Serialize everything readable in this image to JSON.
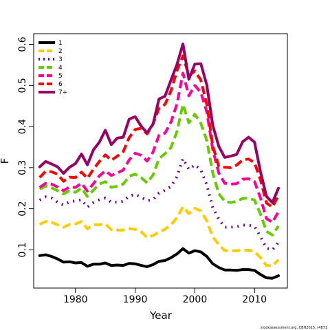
{
  "chart_data": {
    "type": "line",
    "title": "",
    "xlabel": "Year",
    "ylabel": "F",
    "xlim": [
      1973,
      2015.5
    ],
    "ylim": [
      0.007,
      0.626
    ],
    "xticks": [
      1980,
      1990,
      2000,
      2010
    ],
    "yticks": [
      0.1,
      0.2,
      0.3,
      0.4,
      0.5,
      0.6
    ],
    "ytick_labels": [
      "0.1",
      "0.2",
      "0.3",
      "0.4",
      "0.5",
      "0.6"
    ],
    "grid": false,
    "legend_position": "top-left",
    "years": [
      1974,
      1975,
      1976,
      1977,
      1978,
      1979,
      1980,
      1981,
      1982,
      1983,
      1984,
      1985,
      1986,
      1987,
      1988,
      1989,
      1990,
      1991,
      1992,
      1993,
      1994,
      1995,
      1996,
      1997,
      1998,
      1999,
      2000,
      2001,
      2002,
      2003,
      2004,
      2005,
      2006,
      2007,
      2008,
      2009,
      2010,
      2011,
      2012,
      2013,
      2014
    ],
    "series": [
      {
        "name": "1",
        "color": "#000000",
        "dash": "solid",
        "values": [
          0.086,
          0.088,
          0.084,
          0.078,
          0.07,
          0.071,
          0.068,
          0.069,
          0.06,
          0.065,
          0.065,
          0.068,
          0.062,
          0.063,
          0.062,
          0.067,
          0.066,
          0.062,
          0.059,
          0.064,
          0.072,
          0.074,
          0.081,
          0.09,
          0.103,
          0.092,
          0.098,
          0.095,
          0.084,
          0.066,
          0.057,
          0.051,
          0.051,
          0.05,
          0.052,
          0.052,
          0.05,
          0.04,
          0.032,
          0.031,
          0.037
        ]
      },
      {
        "name": "2",
        "color": "#ffcc00",
        "dash": "dash",
        "values": [
          0.162,
          0.169,
          0.167,
          0.161,
          0.155,
          0.162,
          0.163,
          0.169,
          0.151,
          0.161,
          0.161,
          0.163,
          0.149,
          0.148,
          0.148,
          0.151,
          0.15,
          0.144,
          0.13,
          0.135,
          0.143,
          0.15,
          0.161,
          0.178,
          0.205,
          0.188,
          0.201,
          0.195,
          0.171,
          0.131,
          0.113,
          0.098,
          0.098,
          0.098,
          0.099,
          0.099,
          0.096,
          0.081,
          0.062,
          0.061,
          0.076
        ]
      },
      {
        "name": "3",
        "color": "#660099",
        "dash": "dot",
        "values": [
          0.221,
          0.229,
          0.226,
          0.216,
          0.209,
          0.217,
          0.219,
          0.222,
          0.204,
          0.215,
          0.222,
          0.226,
          0.216,
          0.216,
          0.218,
          0.231,
          0.235,
          0.228,
          0.22,
          0.222,
          0.238,
          0.245,
          0.254,
          0.278,
          0.322,
          0.296,
          0.307,
          0.295,
          0.258,
          0.203,
          0.175,
          0.155,
          0.155,
          0.156,
          0.16,
          0.16,
          0.157,
          0.132,
          0.104,
          0.1,
          0.118
        ]
      },
      {
        "name": "4",
        "color": "#66cc00",
        "dash": "dash",
        "values": [
          0.248,
          0.255,
          0.251,
          0.244,
          0.236,
          0.244,
          0.24,
          0.25,
          0.23,
          0.245,
          0.26,
          0.266,
          0.252,
          0.255,
          0.26,
          0.279,
          0.284,
          0.276,
          0.263,
          0.282,
          0.322,
          0.334,
          0.349,
          0.388,
          0.454,
          0.409,
          0.43,
          0.408,
          0.366,
          0.287,
          0.237,
          0.218,
          0.215,
          0.218,
          0.225,
          0.226,
          0.221,
          0.187,
          0.145,
          0.136,
          0.158
        ]
      },
      {
        "name": "5",
        "color": "#ff0099",
        "dash": "dash",
        "values": [
          0.252,
          0.262,
          0.26,
          0.253,
          0.244,
          0.253,
          0.252,
          0.262,
          0.243,
          0.261,
          0.28,
          0.292,
          0.281,
          0.287,
          0.294,
          0.319,
          0.335,
          0.33,
          0.316,
          0.338,
          0.379,
          0.384,
          0.411,
          0.455,
          0.53,
          0.475,
          0.5,
          0.483,
          0.436,
          0.344,
          0.287,
          0.262,
          0.26,
          0.261,
          0.272,
          0.273,
          0.266,
          0.226,
          0.176,
          0.167,
          0.193
        ]
      },
      {
        "name": "6",
        "color": "#ff0000",
        "dash": "dash",
        "values": [
          0.276,
          0.291,
          0.29,
          0.284,
          0.267,
          0.277,
          0.276,
          0.289,
          0.274,
          0.296,
          0.315,
          0.331,
          0.318,
          0.328,
          0.339,
          0.373,
          0.393,
          0.396,
          0.382,
          0.406,
          0.445,
          0.454,
          0.487,
          0.536,
          0.572,
          0.524,
          0.535,
          0.513,
          0.454,
          0.353,
          0.303,
          0.301,
          0.3,
          0.306,
          0.319,
          0.321,
          0.312,
          0.27,
          0.214,
          0.204,
          0.233
        ]
      },
      {
        "name": "7+",
        "color": "#990066",
        "dash": "solid",
        "values": [
          0.302,
          0.315,
          0.309,
          0.302,
          0.286,
          0.301,
          0.31,
          0.333,
          0.307,
          0.343,
          0.362,
          0.391,
          0.356,
          0.372,
          0.374,
          0.418,
          0.424,
          0.401,
          0.385,
          0.406,
          0.467,
          0.474,
          0.513,
          0.551,
          0.601,
          0.515,
          0.552,
          0.553,
          0.501,
          0.403,
          0.352,
          0.325,
          0.328,
          0.332,
          0.363,
          0.374,
          0.362,
          0.29,
          0.23,
          0.215,
          0.25
        ]
      }
    ]
  },
  "credit": "stockassessment.org, CBH2015, r4871"
}
